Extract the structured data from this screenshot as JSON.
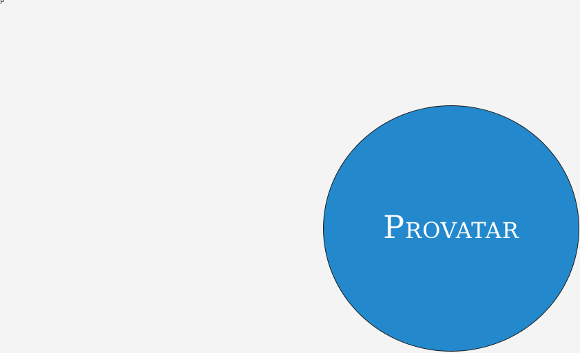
{
  "corner": {
    "text": "P"
  },
  "logo": {
    "text": "Provatar"
  },
  "colors": {
    "background": "#f4f4f4",
    "circle_fill": "#2389cc",
    "circle_border": "#1a1a1a",
    "logo_text": "#ffffff"
  }
}
